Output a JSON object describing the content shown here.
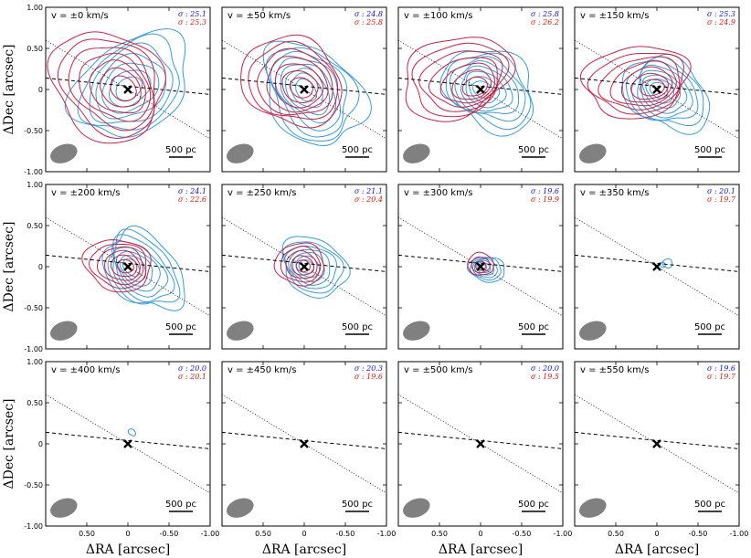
{
  "chart_data": {
    "type": "contour",
    "layout": "3x4 panel grid",
    "xlabel": "ΔRA [arcsec]",
    "ylabel": "ΔDec [arcsec]",
    "xlim": [
      1.0,
      -1.0
    ],
    "ylim": [
      -1.0,
      1.0
    ],
    "xticks": [
      "0.50",
      "0",
      "-0.50",
      "-1.00"
    ],
    "xtick_values": [
      0.5,
      0,
      -0.5,
      -1.0
    ],
    "yticks": [
      "1.00",
      "0.50",
      "0",
      "-0.50",
      "-1.00"
    ],
    "ytick_values": [
      1.0,
      0.5,
      0,
      -0.5,
      -1.0
    ],
    "scalebar_label": "500 pc",
    "series_colors": {
      "blue": "#3a9ad9",
      "red": "#cc2244",
      "sigma_blue": "#1111cc",
      "sigma_red": "#dd1111"
    },
    "lines": {
      "dashed": {
        "x": [
          1.0,
          -1.0
        ],
        "y": [
          0.14,
          -0.06
        ]
      },
      "dotted": {
        "x": [
          1.0,
          -1.0
        ],
        "y": [
          0.6,
          -0.6
        ]
      }
    },
    "beam": {
      "x": 0.78,
      "y": -0.78,
      "major": 0.17,
      "minor": 0.11,
      "pa_deg": -20,
      "color": "#808080"
    },
    "panels": [
      {
        "label": "v = ±0 km/s",
        "sigma_blue": "σ : 25.1",
        "sigma_red": "σ : 25.3",
        "levels_blue": 7,
        "levels_red": 7
      },
      {
        "label": "v = ±50 km/s",
        "sigma_blue": "σ : 24.8",
        "sigma_red": "σ : 25.8",
        "levels_blue": 8,
        "levels_red": 7
      },
      {
        "label": "v = ±100 km/s",
        "sigma_blue": "σ : 25.8",
        "sigma_red": "σ : 26.2",
        "levels_blue": 8,
        "levels_red": 7
      },
      {
        "label": "v = ±150 km/s",
        "sigma_blue": "σ : 25.3",
        "sigma_red": "σ : 24.9",
        "levels_blue": 8,
        "levels_red": 7
      },
      {
        "label": "v = ±200 km/s",
        "sigma_blue": "σ : 24.1",
        "sigma_red": "σ : 22.6",
        "levels_blue": 8,
        "levels_red": 6
      },
      {
        "label": "v = ±250 km/s",
        "sigma_blue": "σ : 21.1",
        "sigma_red": "σ : 20.4",
        "levels_blue": 7,
        "levels_red": 5
      },
      {
        "label": "v = ±300 km/s",
        "sigma_blue": "σ : 19.6",
        "sigma_red": "σ : 19.9",
        "levels_blue": 6,
        "levels_red": 3
      },
      {
        "label": "v = ±350 km/s",
        "sigma_blue": "σ : 20.1",
        "sigma_red": "σ : 19.7",
        "levels_blue": 2,
        "levels_red": 0
      },
      {
        "label": "v = ±400 km/s",
        "sigma_blue": "σ : 20.0",
        "sigma_red": "σ : 20.1",
        "levels_blue": 1,
        "levels_red": 0
      },
      {
        "label": "v = ±450 km/s",
        "sigma_blue": "σ : 20.3",
        "sigma_red": "σ : 19.6",
        "levels_blue": 0,
        "levels_red": 0
      },
      {
        "label": "v = ±500 km/s",
        "sigma_blue": "σ : 20.0",
        "sigma_red": "σ : 19.5",
        "levels_blue": 0,
        "levels_red": 0
      },
      {
        "label": "v = ±550 km/s",
        "sigma_blue": "σ : 19.6",
        "sigma_red": "σ : 19.7",
        "levels_blue": 0,
        "levels_red": 0
      }
    ]
  }
}
